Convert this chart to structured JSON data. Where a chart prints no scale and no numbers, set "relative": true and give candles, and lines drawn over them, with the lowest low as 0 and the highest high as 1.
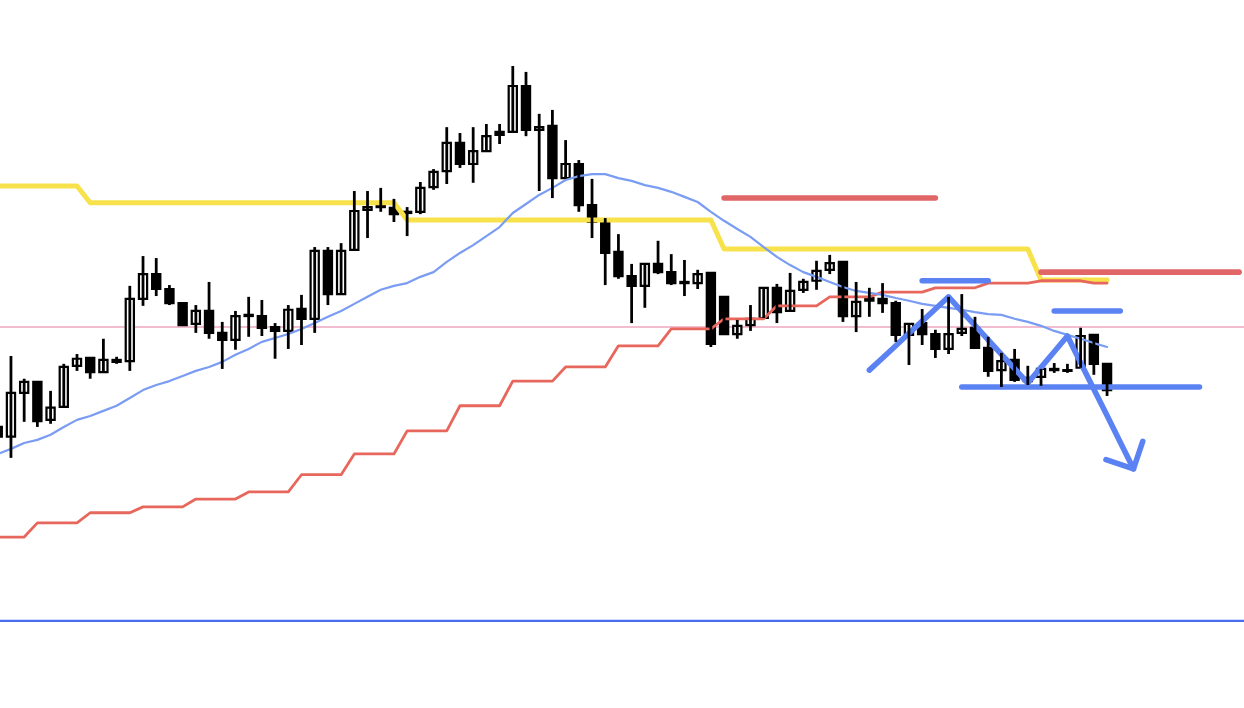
{
  "chart_data": {
    "type": "candlestick",
    "relative": true,
    "tick_labels": false,
    "color": "#000000",
    "categories": [
      null,
      null,
      null,
      null,
      null,
      null,
      null,
      null,
      null,
      null,
      null,
      null,
      null,
      null,
      null,
      null,
      null,
      null,
      null,
      null,
      null,
      null,
      null,
      null,
      null,
      null,
      null,
      null,
      null,
      null,
      null,
      null,
      null,
      null,
      null,
      null,
      null,
      null,
      null,
      null,
      null,
      null,
      null,
      null,
      null,
      null,
      null,
      null,
      null,
      null,
      null,
      null,
      null,
      null,
      null,
      null,
      null,
      null,
      null,
      null,
      null,
      null,
      null,
      null,
      null,
      null,
      null,
      null,
      null,
      null,
      null,
      null,
      null,
      null,
      null,
      null,
      null,
      null,
      null,
      null,
      null,
      null,
      null,
      null,
      null,
      null,
      null,
      null,
      null,
      null,
      null,
      null,
      null,
      null,
      null
    ],
    "ohlc": [
      [
        0.079,
        0.079,
        0.054,
        0.054
      ],
      [
        0.054,
        0.26,
        0,
        0.166
      ],
      [
        0.166,
        0.202,
        0.092,
        0.194
      ],
      [
        0.194,
        0.196,
        0.079,
        0.094
      ],
      [
        0.097,
        0.171,
        0.087,
        0.128
      ],
      [
        0.13,
        0.24,
        0.13,
        0.232
      ],
      [
        0.235,
        0.265,
        0.222,
        0.253
      ],
      [
        0.255,
        0.255,
        0.202,
        0.219
      ],
      [
        0.219,
        0.304,
        0.219,
        0.25
      ],
      [
        0.25,
        0.258,
        0.24,
        0.245
      ],
      [
        0.247,
        0.439,
        0.222,
        0.406
      ],
      [
        0.406,
        0.515,
        0.388,
        0.469
      ],
      [
        0.469,
        0.51,
        0.413,
        0.431
      ],
      [
        0.431,
        0.441,
        0.39,
        0.395
      ],
      [
        0.395,
        0.395,
        0.337,
        0.339
      ],
      [
        0.342,
        0.39,
        0.319,
        0.375
      ],
      [
        0.375,
        0.449,
        0.304,
        0.319
      ],
      [
        0.319,
        0.347,
        0.227,
        0.301
      ],
      [
        0.301,
        0.375,
        0.276,
        0.362
      ],
      [
        0.362,
        0.411,
        0.309,
        0.365
      ],
      [
        0.362,
        0.403,
        0.311,
        0.332
      ],
      [
        0.334,
        0.344,
        0.253,
        0.324
      ],
      [
        0.324,
        0.39,
        0.278,
        0.378
      ],
      [
        0.38,
        0.416,
        0.288,
        0.355
      ],
      [
        0.355,
        0.538,
        0.319,
        0.528
      ],
      [
        0.528,
        0.538,
        0.39,
        0.418
      ],
      [
        0.418,
        0.548,
        0.416,
        0.528
      ],
      [
        0.531,
        0.681,
        0.531,
        0.63
      ],
      [
        0.633,
        0.681,
        0.561,
        0.64
      ],
      [
        0.64,
        0.689,
        0.628,
        0.643
      ],
      [
        0.638,
        0.661,
        0.602,
        0.622
      ],
      [
        0.628,
        0.64,
        0.566,
        0.625
      ],
      [
        0.628,
        0.704,
        0.622,
        0.689
      ],
      [
        0.691,
        0.737,
        0.684,
        0.73
      ],
      [
        0.732,
        0.844,
        0.699,
        0.804
      ],
      [
        0.804,
        0.829,
        0.74,
        0.75
      ],
      [
        0.75,
        0.844,
        0.702,
        0.783
      ],
      [
        0.783,
        0.852,
        0.781,
        0.821
      ],
      [
        0.832,
        0.852,
        0.801,
        0.824
      ],
      [
        0.832,
        1,
        0.832,
        0.949
      ],
      [
        0.949,
        0.985,
        0.821,
        0.837
      ],
      [
        0.837,
        0.878,
        0.681,
        0.844
      ],
      [
        0.847,
        0.888,
        0.663,
        0.714
      ],
      [
        0.714,
        0.811,
        0.714,
        0.75
      ],
      [
        0.75,
        0.76,
        0.628,
        0.645
      ],
      [
        0.645,
        0.712,
        0.561,
        0.602
      ],
      [
        0.605,
        0.612,
        0.441,
        0.523
      ],
      [
        0.526,
        0.571,
        0.457,
        0.464
      ],
      [
        0.464,
        0.495,
        0.344,
        0.439
      ],
      [
        0.439,
        0.495,
        0.383,
        0.495
      ],
      [
        0.495,
        0.554,
        0.469,
        0.474
      ],
      [
        0.474,
        0.52,
        0.441,
        0.446
      ],
      [
        0.449,
        0.505,
        0.413,
        0.446
      ],
      [
        0.446,
        0.48,
        0.431,
        0.469
      ],
      [
        0.472,
        0.472,
        0.283,
        0.291
      ],
      [
        0.411,
        0.411,
        0.316,
        0.316
      ],
      [
        0.316,
        0.352,
        0.304,
        0.337
      ],
      [
        0.339,
        0.39,
        0.324,
        0.355
      ],
      [
        0.357,
        0.434,
        0.357,
        0.434
      ],
      [
        0.434,
        0.444,
        0.344,
        0.372
      ],
      [
        0.375,
        0.472,
        0.375,
        0.426
      ],
      [
        0.429,
        0.457,
        0.421,
        0.449
      ],
      [
        0.452,
        0.503,
        0.429,
        0.477
      ],
      [
        0.48,
        0.518,
        0.469,
        0.497
      ],
      [
        0.5,
        0.5,
        0.347,
        0.362
      ],
      [
        0.362,
        0.449,
        0.321,
        0.398
      ],
      [
        0.408,
        0.434,
        0.36,
        0.401
      ],
      [
        0.406,
        0.446,
        0.37,
        0.395
      ],
      [
        0.395,
        0.401,
        0.296,
        0.314
      ],
      [
        0.314,
        0.342,
        0.237,
        0.342
      ],
      [
        0.344,
        0.38,
        0.288,
        0.316
      ],
      [
        0.316,
        0.327,
        0.255,
        0.278
      ],
      [
        0.278,
        0.411,
        0.265,
        0.316
      ],
      [
        0.319,
        0.418,
        0.311,
        0.329
      ],
      [
        0.332,
        0.36,
        0.281,
        0.281
      ],
      [
        0.281,
        0.309,
        0.207,
        0.222
      ],
      [
        0.224,
        0.268,
        0.181,
        0.247
      ],
      [
        0.25,
        0.278,
        0.194,
        0.199
      ],
      [
        0.204,
        0.235,
        0.186,
        0.196
      ],
      [
        0.207,
        0.227,
        0.184,
        0.227
      ],
      [
        0.227,
        0.242,
        0.217,
        0.224
      ],
      [
        0.224,
        0.24,
        0.217,
        0.222
      ],
      [
        0.23,
        0.332,
        0.23,
        0.311
      ],
      [
        0.314,
        0.314,
        0.212,
        0.24
      ],
      [
        0.24,
        0.24,
        0.158,
        0.173
      ],
      null,
      null,
      null,
      null,
      null,
      null,
      null,
      null,
      null,
      null
    ],
    "series": [
      {
        "type": "line",
        "color": "#f7e24b",
        "values": [
          0.694,
          0.694,
          0.694,
          0.694,
          0.694,
          0.694,
          0.694,
          0.651,
          0.651,
          0.651,
          0.651,
          0.651,
          0.651,
          0.651,
          0.651,
          0.651,
          0.651,
          0.651,
          0.651,
          0.651,
          0.651,
          0.651,
          0.651,
          0.651,
          0.651,
          0.651,
          0.651,
          0.651,
          0.651,
          0.651,
          0.651,
          0.607,
          0.607,
          0.607,
          0.607,
          0.607,
          0.607,
          0.607,
          0.607,
          0.607,
          0.607,
          0.607,
          0.607,
          0.607,
          0.607,
          0.607,
          0.607,
          0.607,
          0.607,
          0.607,
          0.607,
          0.607,
          0.607,
          0.607,
          0.607,
          0.533,
          0.533,
          0.533,
          0.533,
          0.533,
          0.533,
          0.533,
          0.533,
          0.533,
          0.533,
          0.533,
          0.533,
          0.533,
          0.533,
          0.533,
          0.533,
          0.533,
          0.533,
          0.533,
          0.533,
          0.533,
          0.533,
          0.533,
          0.533,
          0.454,
          0.454,
          0.454,
          0.454,
          0.454,
          0.454,
          null,
          null,
          null,
          null,
          null,
          null,
          null,
          null,
          null,
          null
        ]
      },
      {
        "type": "line",
        "color": "#e8675c",
        "values": [
          -0.202,
          -0.202,
          -0.202,
          -0.166,
          -0.166,
          -0.166,
          -0.166,
          -0.14,
          -0.14,
          -0.14,
          -0.14,
          -0.125,
          -0.125,
          -0.125,
          -0.125,
          -0.105,
          -0.105,
          -0.105,
          -0.105,
          -0.087,
          -0.087,
          -0.087,
          -0.087,
          -0.043,
          -0.043,
          -0.043,
          -0.043,
          0.01,
          0.01,
          0.01,
          0.01,
          0.069,
          0.069,
          0.069,
          0.069,
          0.133,
          0.133,
          0.133,
          0.133,
          0.196,
          0.196,
          0.196,
          0.196,
          0.232,
          0.232,
          0.232,
          0.232,
          0.286,
          0.286,
          0.286,
          0.286,
          0.329,
          0.329,
          0.329,
          0.329,
          0.355,
          0.355,
          0.355,
          0.355,
          0.388,
          0.388,
          0.388,
          0.388,
          0.411,
          0.411,
          0.411,
          0.411,
          0.423,
          0.423,
          0.423,
          0.423,
          0.434,
          0.434,
          0.434,
          0.434,
          0.446,
          0.446,
          0.446,
          0.446,
          0.452,
          0.452,
          0.452,
          0.452,
          0.446,
          0.446,
          null,
          null,
          null,
          null,
          null,
          null,
          null,
          null,
          null,
          null
        ]
      },
      {
        "type": "line",
        "color": "#7a9cf2",
        "values": [
          0.01,
          0.023,
          0.038,
          0.046,
          0.059,
          0.079,
          0.097,
          0.107,
          0.12,
          0.133,
          0.153,
          0.173,
          0.186,
          0.196,
          0.209,
          0.222,
          0.232,
          0.245,
          0.263,
          0.278,
          0.296,
          0.306,
          0.316,
          0.329,
          0.344,
          0.36,
          0.375,
          0.393,
          0.411,
          0.429,
          0.439,
          0.446,
          0.462,
          0.474,
          0.5,
          0.523,
          0.543,
          0.566,
          0.589,
          0.625,
          0.648,
          0.671,
          0.689,
          0.709,
          0.719,
          0.724,
          0.724,
          0.714,
          0.707,
          0.696,
          0.689,
          0.679,
          0.666,
          0.653,
          0.628,
          0.605,
          0.584,
          0.564,
          0.538,
          0.513,
          0.492,
          0.474,
          0.462,
          0.449,
          0.436,
          0.426,
          0.421,
          0.416,
          0.408,
          0.401,
          0.393,
          0.388,
          0.383,
          0.378,
          0.372,
          0.367,
          0.365,
          0.355,
          0.347,
          0.337,
          0.324,
          0.314,
          0.304,
          0.293,
          0.283,
          null,
          null,
          null,
          null,
          null,
          null,
          null,
          null,
          null,
          null
        ]
      },
      {
        "type": "line",
        "color": "#e06668",
        "values": [
          null,
          null,
          null,
          null,
          null,
          null,
          null,
          null,
          null,
          null,
          null,
          null,
          null,
          null,
          null,
          null,
          null,
          null,
          null,
          null,
          null,
          null,
          null,
          null,
          null,
          null,
          null,
          null,
          null,
          null,
          null,
          null,
          null,
          null,
          null,
          null,
          null,
          null,
          null,
          null,
          null,
          null,
          null,
          null,
          null,
          null,
          null,
          null,
          null,
          null,
          null,
          null,
          null,
          null,
          null,
          0.663,
          0.663,
          0.663,
          0.663,
          0.663,
          0.663,
          0.663,
          0.663,
          0.663,
          0.663,
          0.663,
          0.663,
          0.663,
          0.663,
          0.663,
          0.663,
          0.663,
          null,
          null,
          null,
          null,
          null,
          null,
          null,
          null,
          null,
          null,
          null,
          null,
          null,
          null,
          null,
          null,
          null,
          null,
          null,
          null,
          null,
          null,
          null
        ]
      },
      {
        "type": "line",
        "color": "#e06668",
        "values": [
          null,
          null,
          null,
          null,
          null,
          null,
          null,
          null,
          null,
          null,
          null,
          null,
          null,
          null,
          null,
          null,
          null,
          null,
          null,
          null,
          null,
          null,
          null,
          null,
          null,
          null,
          null,
          null,
          null,
          null,
          null,
          null,
          null,
          null,
          null,
          null,
          null,
          null,
          null,
          null,
          null,
          null,
          null,
          null,
          null,
          null,
          null,
          null,
          null,
          null,
          null,
          null,
          null,
          null,
          null,
          null,
          null,
          null,
          null,
          null,
          null,
          null,
          null,
          null,
          null,
          null,
          null,
          null,
          null,
          null,
          null,
          null,
          null,
          null,
          null,
          null,
          null,
          null,
          null,
          0.474,
          0.474,
          0.474,
          0.474,
          0.474,
          0.474,
          0.474,
          0.474,
          0.474,
          0.474,
          0.474,
          0.474,
          0.474,
          0.474,
          0.474,
          0.474
        ]
      },
      {
        "type": "line",
        "color": "#5b82f2",
        "values": [
          null,
          null,
          null,
          null,
          null,
          null,
          null,
          null,
          null,
          null,
          null,
          null,
          null,
          null,
          null,
          null,
          null,
          null,
          null,
          null,
          null,
          null,
          null,
          null,
          null,
          null,
          null,
          null,
          null,
          null,
          null,
          null,
          null,
          null,
          null,
          null,
          null,
          null,
          null,
          null,
          null,
          null,
          null,
          null,
          null,
          null,
          null,
          null,
          null,
          null,
          null,
          null,
          null,
          null,
          null,
          null,
          null,
          null,
          null,
          null,
          null,
          null,
          null,
          null,
          null,
          null,
          null,
          null,
          null,
          null,
          0.452,
          0.452,
          0.452,
          0.452,
          0.452,
          0.452,
          null,
          null,
          null,
          null,
          null,
          null,
          null,
          null,
          null,
          null,
          null,
          null,
          null,
          null,
          null,
          null,
          null,
          null,
          null
        ]
      },
      {
        "type": "line",
        "color": "#5b82f2",
        "values": [
          null,
          null,
          null,
          null,
          null,
          null,
          null,
          null,
          null,
          null,
          null,
          null,
          null,
          null,
          null,
          null,
          null,
          null,
          null,
          null,
          null,
          null,
          null,
          null,
          null,
          null,
          null,
          null,
          null,
          null,
          null,
          null,
          null,
          null,
          null,
          null,
          null,
          null,
          null,
          null,
          null,
          null,
          null,
          null,
          null,
          null,
          null,
          null,
          null,
          null,
          null,
          null,
          null,
          null,
          null,
          null,
          null,
          null,
          null,
          null,
          null,
          null,
          null,
          null,
          null,
          null,
          null,
          null,
          null,
          null,
          null,
          null,
          null,
          null,
          null,
          null,
          null,
          null,
          null,
          null,
          0.375,
          0.375,
          0.375,
          0.375,
          0.375,
          0.375,
          null,
          null,
          null,
          null,
          null,
          null,
          null,
          null,
          null
        ]
      },
      {
        "type": "line",
        "color": "#5b82f2",
        "values": [
          null,
          null,
          null,
          null,
          null,
          null,
          null,
          null,
          null,
          null,
          null,
          null,
          null,
          null,
          null,
          null,
          null,
          null,
          null,
          null,
          null,
          null,
          null,
          null,
          null,
          null,
          null,
          null,
          null,
          null,
          null,
          null,
          null,
          null,
          null,
          null,
          null,
          null,
          null,
          null,
          null,
          null,
          null,
          null,
          null,
          null,
          null,
          null,
          null,
          null,
          null,
          null,
          null,
          null,
          null,
          null,
          null,
          null,
          null,
          null,
          null,
          null,
          null,
          null,
          null,
          null,
          null,
          null,
          null,
          null,
          null,
          null,
          null,
          0.181,
          0.181,
          0.181,
          0.181,
          0.181,
          0.181,
          0.181,
          0.181,
          0.181,
          0.181,
          0.181,
          0.181,
          0.181,
          0.181,
          0.181,
          0.181,
          0.181,
          0.181,
          0.181,
          null,
          null,
          null
        ]
      },
      {
        "type": "line",
        "color": "#5b82f2",
        "values": [
          null,
          null,
          null,
          null,
          null,
          null,
          null,
          null,
          null,
          null,
          null,
          null,
          null,
          null,
          null,
          null,
          null,
          null,
          null,
          null,
          null,
          null,
          null,
          null,
          null,
          null,
          null,
          null,
          null,
          null,
          null,
          null,
          null,
          null,
          null,
          null,
          null,
          null,
          null,
          null,
          null,
          null,
          null,
          null,
          null,
          null,
          null,
          null,
          null,
          null,
          null,
          null,
          null,
          null,
          null,
          null,
          null,
          null,
          null,
          null,
          null,
          null,
          null,
          null,
          null,
          null,
          0.224,
          0.255,
          0.286,
          0.318,
          0.349,
          0.38,
          0.411,
          0.374,
          0.338,
          0.301,
          0.264,
          0.228,
          0.191,
          0.231,
          0.271,
          0.311,
          0.243,
          0.175,
          0.108,
          0.04,
          -0.028,
          null,
          null,
          null,
          null,
          null,
          null,
          null,
          null
        ]
      }
    ],
    "ref_lines": [
      {
        "axis": "y",
        "value": 0.334,
        "color": "#f2bdd0"
      },
      {
        "axis": "y",
        "value": -0.416,
        "color": "#4a6cf0"
      }
    ]
  }
}
